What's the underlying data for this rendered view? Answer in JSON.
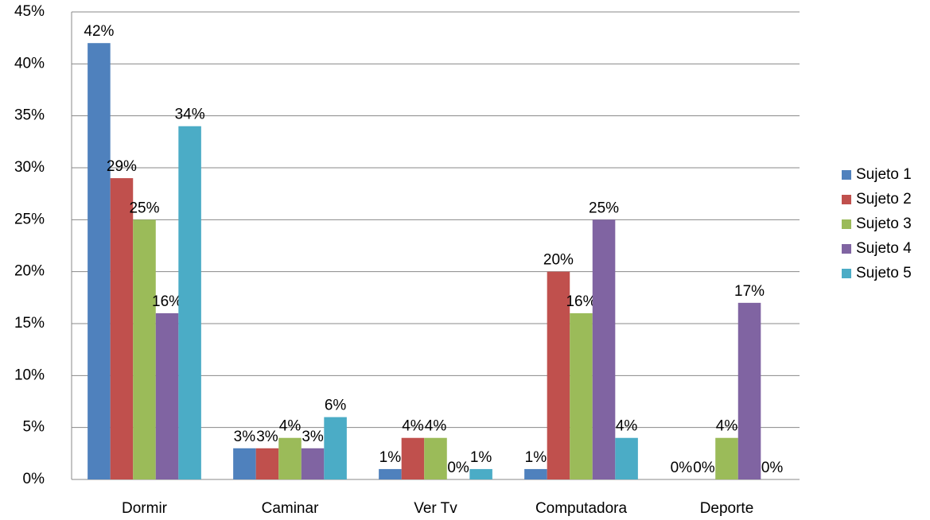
{
  "chart_data": {
    "type": "bar",
    "categories": [
      "Dormir",
      "Caminar",
      "Ver Tv",
      "Computadora",
      "Deporte"
    ],
    "series": [
      {
        "name": "Sujeto 1",
        "color": "#4f81bd",
        "values": [
          42,
          3,
          1,
          1,
          0
        ],
        "value_labels": [
          "42%",
          "3%",
          "1%",
          "1%",
          "0%"
        ]
      },
      {
        "name": "Sujeto 2",
        "color": "#c0504d",
        "values": [
          29,
          3,
          4,
          20,
          0
        ],
        "value_labels": [
          "29%",
          "3%",
          "4%",
          "20%",
          "0%"
        ]
      },
      {
        "name": "Sujeto 3",
        "color": "#9bbb59",
        "values": [
          25,
          4,
          4,
          16,
          4
        ],
        "value_labels": [
          "25%",
          "4%",
          "4%",
          "16%",
          "4%"
        ]
      },
      {
        "name": "Sujeto 4",
        "color": "#8064a2",
        "values": [
          16,
          3,
          0,
          25,
          17
        ],
        "value_labels": [
          "16%",
          "3%",
          "0%",
          "25%",
          "17%"
        ]
      },
      {
        "name": "Sujeto 5",
        "color": "#4bacc6",
        "values": [
          34,
          6,
          1,
          4,
          0
        ],
        "value_labels": [
          "34%",
          "6%",
          "1%",
          "4%",
          "0%"
        ]
      }
    ],
    "ylim": [
      0,
      45
    ],
    "yticks": [
      {
        "value": 0,
        "label": "0%"
      },
      {
        "value": 5,
        "label": "5%"
      },
      {
        "value": 10,
        "label": "10%"
      },
      {
        "value": 15,
        "label": "15%"
      },
      {
        "value": 20,
        "label": "20%"
      },
      {
        "value": 25,
        "label": "25%"
      },
      {
        "value": 30,
        "label": "30%"
      },
      {
        "value": 35,
        "label": "35%"
      },
      {
        "value": 40,
        "label": "40%"
      },
      {
        "value": 45,
        "label": "45%"
      }
    ],
    "grid": true,
    "legend": "right"
  }
}
